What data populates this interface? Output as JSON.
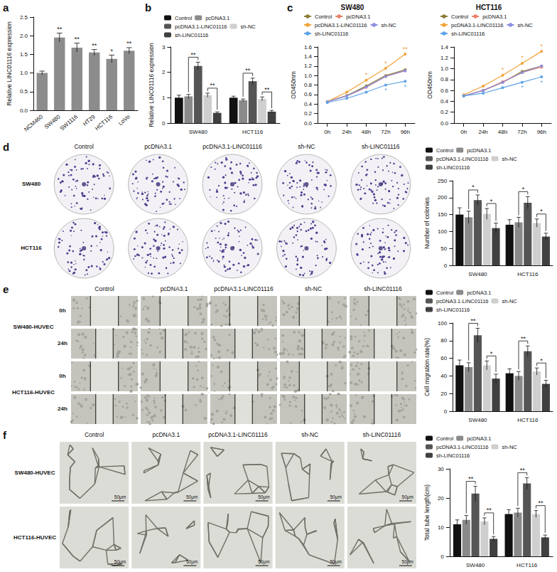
{
  "chart_data": [
    {
      "type": "bar",
      "categories": [
        "NCM460",
        "SW480",
        "SW1116",
        "HT29",
        "HCT116",
        "LoVo"
      ],
      "values": [
        1.0,
        1.95,
        1.68,
        1.55,
        1.38,
        1.6
      ],
      "errors": [
        0.05,
        0.12,
        0.12,
        0.08,
        0.1,
        0.08
      ],
      "color": "#8c8c8c",
      "ylabel": "Relative LINC01116 expression",
      "ylim": [
        0,
        2.5
      ],
      "yticks": [
        {
          "value": 0,
          "label": "0.0"
        },
        0.5,
        {
          "value": 1,
          "label": "1.0"
        },
        1.5,
        {
          "value": 2,
          "label": "2.0"
        },
        2.5
      ],
      "grid": false,
      "annotations": [
        {
          "category": "SW480",
          "text": "**"
        },
        {
          "category": "SW1116",
          "text": "**"
        },
        {
          "category": "HT29",
          "text": "**"
        },
        {
          "category": "HCT116",
          "text": "*"
        },
        {
          "category": "LoVo",
          "text": "**"
        }
      ]
    },
    {
      "type": "bar",
      "categories": [
        "SW480",
        "HCT116"
      ],
      "series": [
        {
          "name": "Control",
          "color": "#111111",
          "values": [
            1.0,
            1.0
          ],
          "errors": [
            0.1,
            0.06
          ]
        },
        {
          "name": "pcDNA3.1",
          "color": "#8a8a8a",
          "values": [
            1.05,
            0.9
          ],
          "errors": [
            0.08,
            0.05
          ]
        },
        {
          "name": "pcDNA3.1-LINC01116",
          "color": "#555555",
          "values": [
            2.25,
            1.65
          ],
          "errors": [
            0.15,
            0.12
          ]
        },
        {
          "name": "sh-NC",
          "color": "#cfcfcf",
          "values": [
            1.1,
            0.95
          ],
          "errors": [
            0.08,
            0.08
          ]
        },
        {
          "name": "sh-LINC01116",
          "color": "#404040",
          "values": [
            0.4,
            0.45
          ],
          "errors": [
            0.04,
            0.05
          ]
        }
      ],
      "ylabel": "Relative LINC01116 expression",
      "ylim": [
        0,
        3
      ],
      "yticks": [
        0,
        1,
        2,
        3
      ],
      "grid": false,
      "legend": "top",
      "brackets": [
        {
          "category": "SW480",
          "between": [
            "pcDNA3.1",
            "pcDNA3.1-LINC01116"
          ],
          "text": "**"
        },
        {
          "category": "SW480",
          "between": [
            "sh-NC",
            "sh-LINC01116"
          ],
          "text": "**"
        },
        {
          "category": "HCT116",
          "between": [
            "pcDNA3.1",
            "pcDNA3.1-LINC01116"
          ],
          "text": "**"
        },
        {
          "category": "HCT116",
          "between": [
            "sh-NC",
            "sh-LINC01116"
          ],
          "text": "**"
        }
      ]
    },
    {
      "type": "line",
      "title": "SW480",
      "categories": [
        "0h",
        "24h",
        "48h",
        "72h",
        "96h"
      ],
      "series": [
        {
          "name": "Control",
          "color": "#8b7d3a",
          "marker": "circle",
          "values": [
            0.45,
            0.58,
            0.78,
            1.0,
            1.12
          ]
        },
        {
          "name": "pcDNA3.1",
          "color": "#e8826a",
          "marker": "circle",
          "values": [
            0.45,
            0.57,
            0.75,
            0.98,
            1.1
          ]
        },
        {
          "name": "pcDNA3.1-LINC01116",
          "color": "#f2a33a",
          "marker": "circle",
          "values": [
            0.45,
            0.65,
            0.9,
            1.15,
            1.45
          ]
        },
        {
          "name": "sh-NC",
          "color": "#8d8fe0",
          "marker": "circle",
          "values": [
            0.45,
            0.57,
            0.76,
            0.98,
            1.1
          ]
        },
        {
          "name": "sh-LINC01116",
          "color": "#5ea3e8",
          "marker": "circle",
          "values": [
            0.43,
            0.52,
            0.65,
            0.8,
            0.88
          ]
        }
      ],
      "ylabel": "OD450nm",
      "ylim": [
        0,
        1.6
      ],
      "yticks": [
        {
          "value": 0,
          "label": "0.0"
        },
        0.2,
        0.4,
        0.6,
        0.8,
        {
          "value": 1,
          "label": "1.0"
        },
        1.2,
        1.4,
        1.6
      ],
      "grid": false,
      "legend": "top",
      "annotations": [
        {
          "category": "48h",
          "series": "pcDNA3.1-LINC01116",
          "text": "*",
          "position": "above"
        },
        {
          "category": "72h",
          "series": "pcDNA3.1-LINC01116",
          "text": "*",
          "position": "above"
        },
        {
          "category": "96h",
          "series": "pcDNA3.1-LINC01116",
          "text": "**",
          "position": "above"
        },
        {
          "category": "72h",
          "series": "sh-LINC01116",
          "text": "*",
          "position": "below"
        },
        {
          "category": "96h",
          "series": "sh-LINC01116",
          "text": "*",
          "position": "below"
        }
      ]
    },
    {
      "type": "line",
      "title": "HCT116",
      "categories": [
        "0h",
        "24h",
        "48h",
        "72h",
        "96h"
      ],
      "series": [
        {
          "name": "Control",
          "color": "#8b7d3a",
          "marker": "circle",
          "values": [
            0.5,
            0.6,
            0.75,
            0.95,
            1.05
          ]
        },
        {
          "name": "pcDNA3.1",
          "color": "#e8826a",
          "marker": "circle",
          "values": [
            0.5,
            0.6,
            0.76,
            0.93,
            1.03
          ]
        },
        {
          "name": "pcDNA3.1-LINC01116",
          "color": "#f2a33a",
          "marker": "circle",
          "values": [
            0.52,
            0.68,
            0.88,
            1.1,
            1.32
          ]
        },
        {
          "name": "sh-NC",
          "color": "#8d8fe0",
          "marker": "circle",
          "values": [
            0.5,
            0.6,
            0.75,
            0.93,
            1.05
          ]
        },
        {
          "name": "sh-LINC01116",
          "color": "#5ea3e8",
          "marker": "circle",
          "values": [
            0.5,
            0.55,
            0.65,
            0.75,
            0.85
          ]
        }
      ],
      "ylabel": "OD450nm",
      "ylim": [
        0,
        1.4
      ],
      "yticks": [
        {
          "value": 0,
          "label": "0.0"
        },
        0.2,
        0.4,
        0.6,
        0.8,
        {
          "value": 1,
          "label": "1.0"
        },
        1.2,
        1.4
      ],
      "grid": false,
      "legend": "top",
      "annotations": [
        {
          "category": "48h",
          "series": "pcDNA3.1-LINC01116",
          "text": "*",
          "position": "above"
        },
        {
          "category": "72h",
          "series": "pcDNA3.1-LINC01116",
          "text": "*",
          "position": "above"
        },
        {
          "category": "96h",
          "series": "pcDNA3.1-LINC01116",
          "text": "*",
          "position": "above"
        },
        {
          "category": "72h",
          "series": "sh-LINC01116",
          "text": "*",
          "position": "below"
        },
        {
          "category": "96h",
          "series": "sh-LINC01116",
          "text": "*",
          "position": "below"
        }
      ]
    },
    {
      "type": "bar",
      "categories": [
        "SW480",
        "HCT116"
      ],
      "series": [
        {
          "name": "Control",
          "color": "#111111",
          "values": [
            150,
            120
          ],
          "errors": [
            20,
            15
          ]
        },
        {
          "name": "pcDNA3.1",
          "color": "#8a8a8a",
          "values": [
            142,
            127
          ],
          "errors": [
            18,
            15
          ]
        },
        {
          "name": "pcDNA3.1-LINC01116",
          "color": "#555555",
          "values": [
            193,
            185
          ],
          "errors": [
            15,
            18
          ]
        },
        {
          "name": "sh-NC",
          "color": "#cfcfcf",
          "values": [
            152,
            125
          ],
          "errors": [
            16,
            12
          ]
        },
        {
          "name": "sh-LINC01116",
          "color": "#404040",
          "values": [
            110,
            85
          ],
          "errors": [
            15,
            10
          ]
        }
      ],
      "ylabel": "Number of colonies",
      "ylim": [
        0,
        250
      ],
      "yticks": [
        0,
        50,
        100,
        150,
        200,
        250
      ],
      "grid": false,
      "legend": "top",
      "brackets": [
        {
          "category": "SW480",
          "between": [
            "pcDNA3.1",
            "pcDNA3.1-LINC01116"
          ],
          "text": "*"
        },
        {
          "category": "SW480",
          "between": [
            "sh-NC",
            "sh-LINC01116"
          ],
          "text": "*"
        },
        {
          "category": "HCT116",
          "between": [
            "pcDNA3.1",
            "pcDNA3.1-LINC01116"
          ],
          "text": "*"
        },
        {
          "category": "HCT116",
          "between": [
            "sh-NC",
            "sh-LINC01116"
          ],
          "text": "*"
        }
      ]
    },
    {
      "type": "bar",
      "categories": [
        "SW480",
        "HCT116"
      ],
      "series": [
        {
          "name": "Control",
          "color": "#111111",
          "values": [
            52,
            43
          ],
          "errors": [
            6,
            5
          ]
        },
        {
          "name": "pcDNA3.1",
          "color": "#8a8a8a",
          "values": [
            50,
            40
          ],
          "errors": [
            5,
            5
          ]
        },
        {
          "name": "pcDNA3.1-LINC01116",
          "color": "#555555",
          "values": [
            86,
            68
          ],
          "errors": [
            8,
            6
          ]
        },
        {
          "name": "sh-NC",
          "color": "#cfcfcf",
          "values": [
            52,
            45
          ],
          "errors": [
            5,
            4
          ]
        },
        {
          "name": "sh-LINC01116",
          "color": "#404040",
          "values": [
            37,
            31
          ],
          "errors": [
            5,
            4
          ]
        }
      ],
      "ylabel": "Cell migration rate(%)",
      "ylim": [
        0,
        100
      ],
      "yticks": [
        0,
        20,
        40,
        60,
        80,
        100
      ],
      "grid": false,
      "legend": "top",
      "brackets": [
        {
          "category": "SW480",
          "between": [
            "pcDNA3.1",
            "pcDNA3.1-LINC01116"
          ],
          "text": "**"
        },
        {
          "category": "SW480",
          "between": [
            "sh-NC",
            "sh-LINC01116"
          ],
          "text": "*"
        },
        {
          "category": "HCT116",
          "between": [
            "pcDNA3.1",
            "pcDNA3.1-LINC01116"
          ],
          "text": "**"
        },
        {
          "category": "HCT116",
          "between": [
            "sh-NC",
            "sh-LINC01116"
          ],
          "text": "*"
        }
      ]
    },
    {
      "type": "bar",
      "categories": [
        "SW480",
        "HCT116"
      ],
      "series": [
        {
          "name": "Control",
          "color": "#111111",
          "values": [
            11,
            14.5
          ],
          "errors": [
            1.5,
            1.5
          ]
        },
        {
          "name": "pcDNA3.1",
          "color": "#8a8a8a",
          "values": [
            12.5,
            15
          ],
          "errors": [
            1.5,
            1.5
          ]
        },
        {
          "name": "pcDNA3.1-LINC01116",
          "color": "#555555",
          "values": [
            21.5,
            25
          ],
          "errors": [
            2.5,
            2
          ]
        },
        {
          "name": "sh-NC",
          "color": "#cfcfcf",
          "values": [
            12,
            14.5
          ],
          "errors": [
            1.2,
            1.2
          ]
        },
        {
          "name": "sh-LINC01116",
          "color": "#404040",
          "values": [
            6,
            6.5
          ],
          "errors": [
            0.8,
            0.8
          ]
        }
      ],
      "ylabel": "Total tube length(cm)",
      "ylim": [
        0,
        30
      ],
      "yticks": [
        0,
        10,
        20,
        30
      ],
      "grid": false,
      "legend": "top",
      "brackets": [
        {
          "category": "SW480",
          "between": [
            "pcDNA3.1",
            "pcDNA3.1-LINC01116"
          ],
          "text": "**"
        },
        {
          "category": "SW480",
          "between": [
            "sh-NC",
            "sh-LINC01116"
          ],
          "text": "**"
        },
        {
          "category": "HCT116",
          "between": [
            "pcDNA3.1",
            "pcDNA3.1-LINC01116"
          ],
          "text": "**"
        },
        {
          "category": "HCT116",
          "between": [
            "sh-NC",
            "sh-LINC01116"
          ],
          "text": "**"
        }
      ]
    }
  ],
  "figure": {
    "panels": [
      "a",
      "b",
      "c",
      "d",
      "e",
      "f"
    ],
    "image_grids": [
      {
        "kind": "colony",
        "columns": [
          "Control",
          "pcDNA3.1",
          "pcDNA3.1-LINC01116",
          "sh-NC",
          "sh-LINC01116"
        ],
        "rows": [
          "SW480",
          "HCT116"
        ]
      },
      {
        "kind": "wound",
        "columns": [
          "Control",
          "pcDNA3.1",
          "pcDNA3.1-LINC01116",
          "sh-NC",
          "sh-LINC01116"
        ],
        "rows": [
          {
            "group": "SW480-HUVEC",
            "times": [
              "0h",
              "24h"
            ]
          },
          {
            "group": "HCT116-HUVEC",
            "times": [
              "0h",
              "24h"
            ]
          }
        ]
      },
      {
        "kind": "tube",
        "columns": [
          "Control",
          "pcDNA3.1",
          "pcDNA3.1-LINC01116",
          "sh-NC",
          "sh-LINC01116"
        ],
        "rows": [
          "SW480-HUVEC",
          "HCT116-HUVEC"
        ],
        "scale_bar": "50μm"
      }
    ]
  }
}
